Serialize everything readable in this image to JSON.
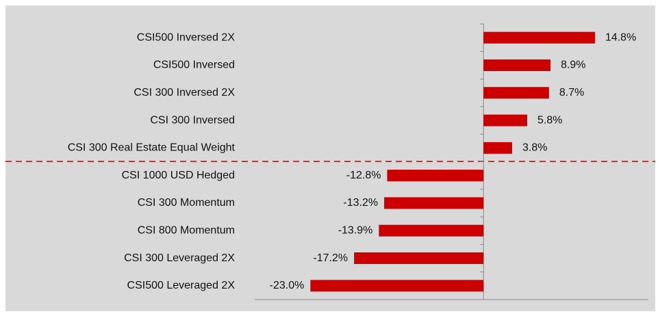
{
  "chart_data": {
    "type": "bar",
    "orientation": "horizontal",
    "categories": [
      "CSI500 Inversed 2X",
      "CSI500 Inversed",
      "CSI 300 Inversed 2X",
      "CSI 300 Inversed",
      "CSI 300 Real Estate Equal Weight",
      "CSI 1000 USD Hedged",
      "CSI 300 Momentum",
      "CSI 800 Momentum",
      "CSI 300 Leveraged 2X",
      "CSI500 Leveraged 2X"
    ],
    "values": [
      14.8,
      8.9,
      8.7,
      5.8,
      3.8,
      -12.8,
      -13.2,
      -13.9,
      -17.2,
      -23.0
    ],
    "value_labels": [
      "14.8%",
      "8.9%",
      "8.7%",
      "5.8%",
      "3.8%",
      "-12.8%",
      "-13.2%",
      "-13.9%",
      "-17.2%",
      "-23.0%"
    ],
    "color": "#cc0000",
    "xlim": [
      -30.4,
      21.9
    ]
  }
}
